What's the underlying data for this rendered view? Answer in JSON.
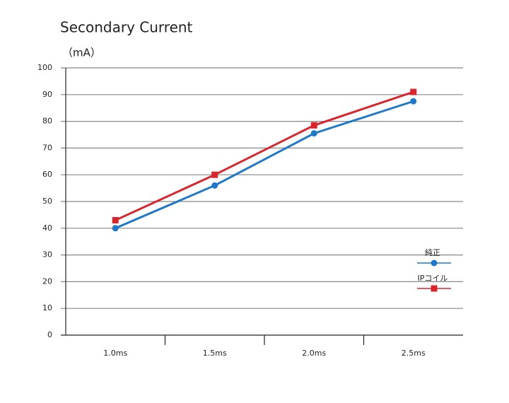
{
  "chart_data": {
    "type": "line",
    "title": "Secondary Current",
    "y_label": "（mA）",
    "categories": [
      "1.0ms",
      "1.5ms",
      "2.0ms",
      "2.5ms"
    ],
    "series": [
      {
        "name": "純正",
        "color": "#1f78c8",
        "marker": "circle",
        "values": [
          40,
          56,
          75.5,
          87.5
        ]
      },
      {
        "name": "IPコイル",
        "color": "#d7262e",
        "marker": "square",
        "values": [
          43,
          60,
          78.5,
          91
        ]
      }
    ],
    "ylim": [
      0,
      100
    ],
    "yticks": [
      0,
      10,
      20,
      30,
      40,
      50,
      60,
      70,
      80,
      90,
      100
    ],
    "grid": true,
    "legend": "lower right"
  }
}
